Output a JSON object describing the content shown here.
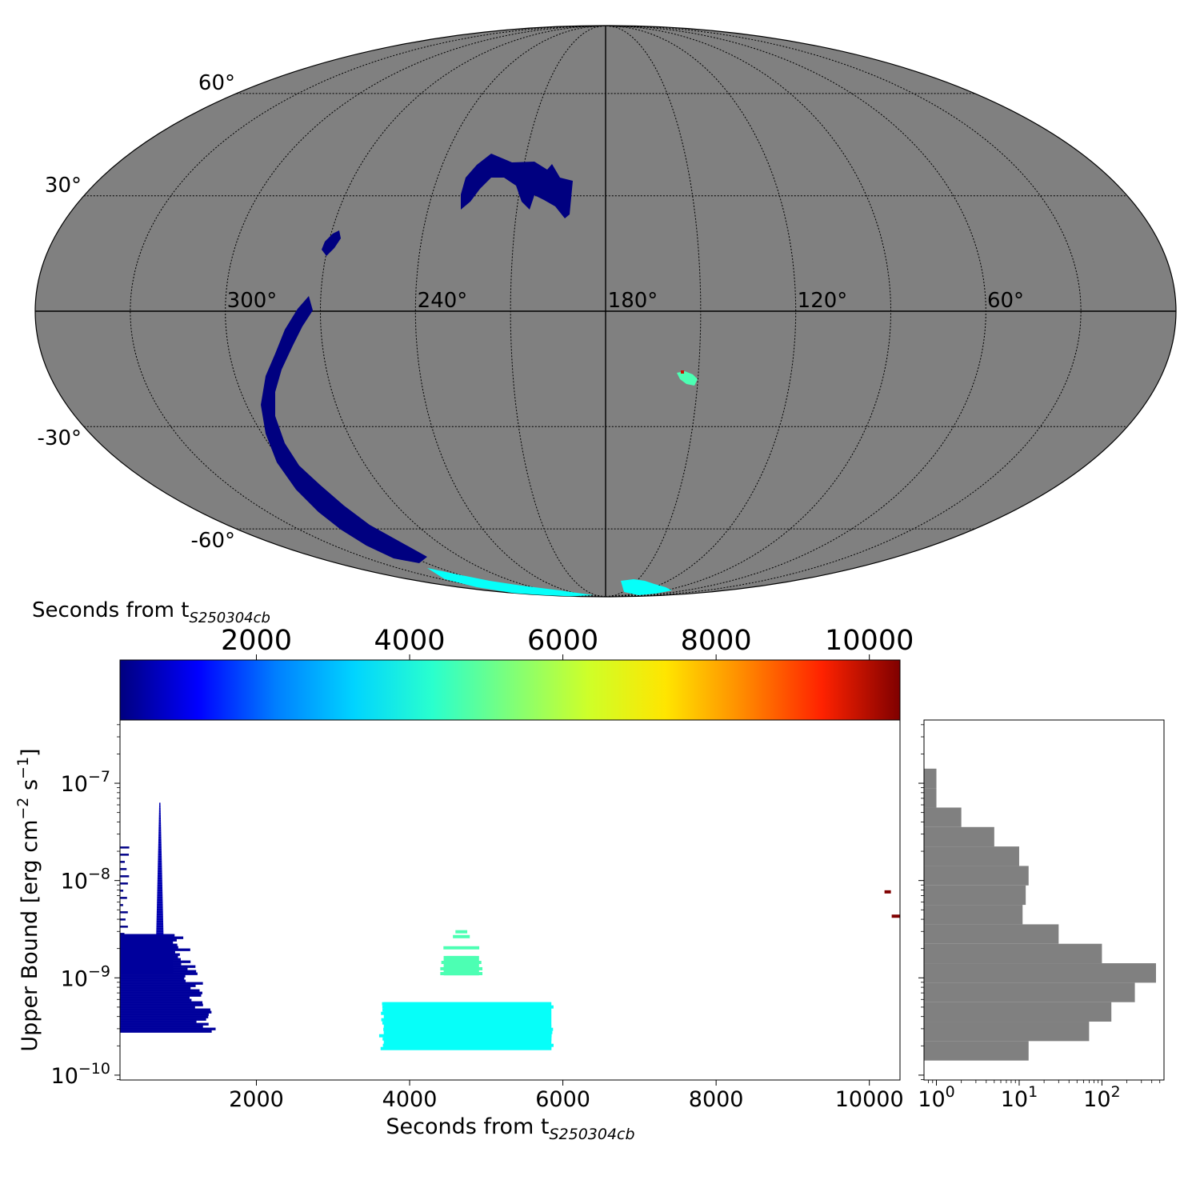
{
  "colors": {
    "sky": "#808080",
    "hist": "#808080",
    "grid": "#000000",
    "jet": [
      "#00007f",
      "#0000ff",
      "#007fff",
      "#00d4ff",
      "#29ffce",
      "#7dff7a",
      "#ceff29",
      "#ffe500",
      "#ff8900",
      "#ff2200",
      "#7f0000"
    ]
  },
  "chart_data": [
    {
      "type": "skymap",
      "projection": "mollweide",
      "ra_tick_labels": [
        "300°",
        "240°",
        "180°",
        "120°",
        "60°"
      ],
      "dec_tick_labels": [
        "60°",
        "30°",
        "-30°",
        "-60°"
      ],
      "regions": [
        {
          "name": "northern arc",
          "ra": [
            245,
            205
          ],
          "dec": [
            20,
            38
          ],
          "seconds": 0
        },
        {
          "name": "small northern patch",
          "ra": 283,
          "dec": 13,
          "seconds": 0
        },
        {
          "name": "southern long arc",
          "ra": [
            305,
            255
          ],
          "dec": [
            0,
            -72
          ],
          "seconds": 0
        },
        {
          "name": "southern cap strip",
          "ra": [
            230,
            185
          ],
          "dec": [
            -80,
            -89
          ],
          "seconds": 4100
        },
        {
          "name": "south-pole patch",
          "ra": [
            170,
            150
          ],
          "dec": [
            -86,
            -89
          ],
          "seconds": 4100
        },
        {
          "name": "small patch",
          "ra": 155,
          "dec": -14,
          "seconds": 4800
        }
      ]
    },
    {
      "type": "colorbar",
      "title": "Seconds from t",
      "title_sub": "S250304cb",
      "range": [
        220,
        10400
      ],
      "tick_values": [
        2000,
        4000,
        6000,
        8000,
        10000
      ],
      "tick_labels": [
        "2000",
        "4000",
        "6000",
        "8000",
        "10000"
      ]
    },
    {
      "type": "scatter",
      "xlabel": "Seconds from t",
      "xlabel_sub": "S250304cb",
      "ylabel": "Upper Bound [erg cm",
      "ylabel_exp1": "−2",
      "ylabel_mid": " s",
      "ylabel_exp2": "−1",
      "ylabel_end": "]",
      "xlim": [
        220,
        10400
      ],
      "ylim_log10": [
        -10.05,
        -6.35
      ],
      "x_tick_values": [
        2000,
        4000,
        6000,
        8000,
        10000
      ],
      "x_tick_labels": [
        "2000",
        "4000",
        "6000",
        "8000",
        "10000"
      ],
      "y_tick_values": [
        -7,
        -8,
        -9,
        -10
      ],
      "y_tick_bases": [
        "10",
        "10",
        "10",
        "10"
      ],
      "y_tick_exps": [
        "−7",
        "−8",
        "−9",
        "−10"
      ],
      "clusters": [
        {
          "name": "early dark-blue block",
          "x": [
            220,
            1550
          ],
          "ylog": [
            -9.55,
            -8.55
          ],
          "seconds": 500
        },
        {
          "name": "early spike",
          "x": [
            700,
            780
          ],
          "ylog": [
            -8.55,
            -7.2
          ],
          "seconds": 700
        },
        {
          "name": "early left streaks",
          "x": [
            220,
            260
          ],
          "ylog": [
            -8.55,
            -7.65
          ],
          "seconds": 300
        },
        {
          "name": "cyan block",
          "x": [
            3600,
            5850
          ],
          "ylog": [
            -9.72,
            -9.25
          ],
          "seconds": 4100
        },
        {
          "name": "green patch",
          "x": [
            4400,
            4950
          ],
          "ylog": [
            -9.0,
            -8.5
          ],
          "seconds": 4800
        },
        {
          "name": "late points",
          "x": [
            10250,
            10400
          ],
          "ylog": [
            -8.35,
            -8.1
          ],
          "seconds": 10400
        }
      ]
    },
    {
      "type": "bar",
      "orientation": "horizontal",
      "x_scale": "log",
      "x_tick_bases": [
        "10",
        "10",
        "10"
      ],
      "x_tick_exps": [
        "0",
        "1",
        "2"
      ],
      "bins_log10": [
        -9.85,
        -9.65,
        -9.45,
        -9.25,
        -9.05,
        -8.85,
        -8.65,
        -8.45,
        -8.25,
        -8.05,
        -7.85,
        -7.65,
        -7.45,
        -7.25,
        -7.05,
        -6.85,
        -6.65,
        -6.45
      ],
      "counts": [
        13,
        70,
        130,
        250,
        450,
        100,
        30,
        11,
        12,
        13,
        10,
        5,
        2,
        1,
        1,
        0,
        0,
        1
      ]
    }
  ]
}
